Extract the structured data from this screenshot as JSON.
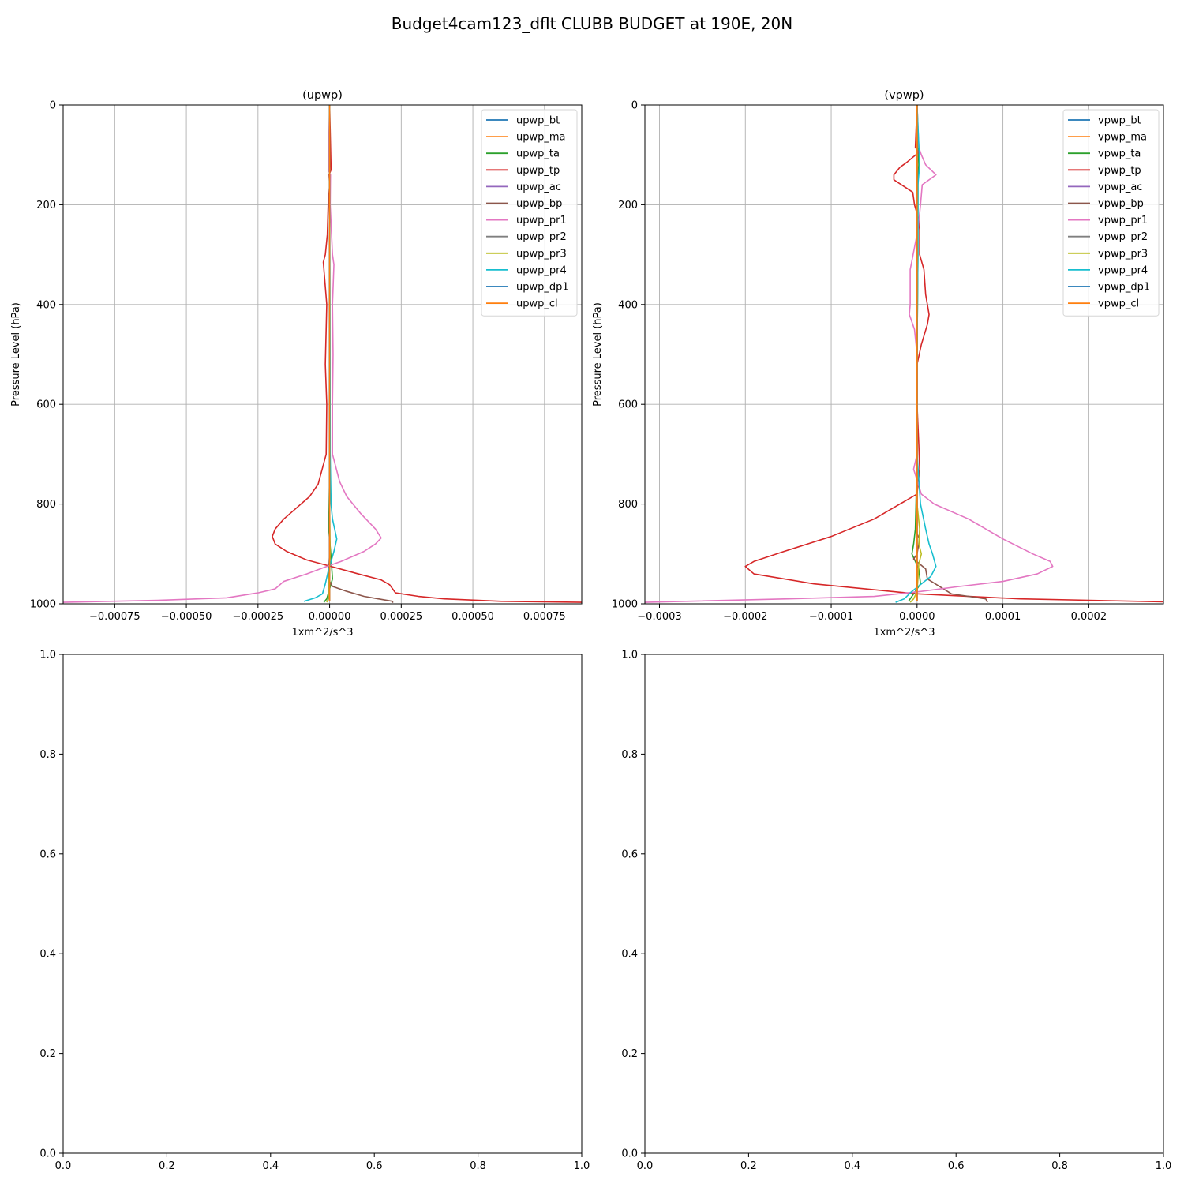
{
  "figure_title": "Budget4cam123_dflt CLUBB BUDGET at 190E, 20N",
  "colors": [
    "#1f77b4",
    "#ff7f0e",
    "#2ca02c",
    "#d62728",
    "#9467bd",
    "#8c564b",
    "#e377c2",
    "#7f7f7f",
    "#bcbd22",
    "#17becf",
    "#1f77b4",
    "#ff7f0e"
  ],
  "chart_data": [
    {
      "type": "line",
      "title": "(upwp)",
      "xlabel": "1xm^2/s^3",
      "ylabel": "Pressure Level (hPa)",
      "xlim": [
        -0.00093,
        0.00088
      ],
      "ylim": [
        1000,
        0
      ],
      "x_ticks": [
        -0.00075,
        -0.0005,
        -0.00025,
        0.0,
        0.00025,
        0.0005,
        0.00075
      ],
      "x_tick_labels": [
        "−0.00075",
        "−0.00050",
        "−0.00025",
        "0.00000",
        "0.00025",
        "0.00050",
        "0.00075"
      ],
      "y_ticks": [
        0,
        200,
        400,
        600,
        800,
        1000
      ],
      "y_tick_labels": [
        "0",
        "200",
        "400",
        "600",
        "800",
        "1000"
      ],
      "grid": true,
      "legend_position": "top-right",
      "series": [
        {
          "name": "upwp_bt",
          "y": [
            0,
            500,
            900,
            995
          ],
          "x": [
            0,
            0,
            0,
            0
          ]
        },
        {
          "name": "upwp_ma",
          "y": [
            0,
            500,
            900,
            995
          ],
          "x": [
            0,
            0,
            0,
            0
          ]
        },
        {
          "name": "upwp_ta",
          "y": [
            0,
            700,
            850,
            900,
            950,
            990,
            997
          ],
          "x": [
            0,
            1e-06,
            -3e-06,
            4e-06,
            1e-05,
            -1e-05,
            -2e-05
          ]
        },
        {
          "name": "upwp_tp",
          "y": [
            0,
            130,
            140,
            160,
            200,
            260,
            300,
            315,
            400,
            520,
            600,
            700,
            760,
            785,
            810,
            830,
            850,
            865,
            880,
            895,
            912,
            925,
            940,
            952,
            962,
            978,
            985,
            990,
            995,
            997
          ],
          "x": [
            0,
            5e-06,
            -2e-06,
            0,
            -5e-06,
            -8e-06,
            -1.5e-05,
            -2.2e-05,
            -1e-05,
            -1.5e-05,
            -1e-05,
            -1.2e-05,
            -4e-05,
            -7e-05,
            -0.00012,
            -0.00016,
            -0.00019,
            -0.0002,
            -0.00019,
            -0.00015,
            -8e-05,
            5e-06,
            0.0001,
            0.00018,
            0.00021,
            0.00023,
            0.00031,
            0.0004,
            0.0006,
            0.00088
          ]
        },
        {
          "name": "upwp_ac",
          "y": [
            0,
            500,
            900,
            995
          ],
          "x": [
            0,
            0,
            0,
            0
          ]
        },
        {
          "name": "upwp_bp",
          "y": [
            0,
            900,
            950,
            965,
            975,
            985,
            990,
            995,
            998
          ],
          "x": [
            0,
            0,
            -5e-06,
            1e-05,
            6e-05,
            0.00012,
            0.00017,
            0.00022,
            0.00022
          ]
        },
        {
          "name": "upwp_pr1",
          "y": [
            0,
            130,
            140,
            200,
            300,
            320,
            400,
            500,
            600,
            700,
            755,
            785,
            820,
            850,
            868,
            880,
            895,
            915,
            925,
            940,
            955,
            970,
            978,
            988,
            993,
            997
          ],
          "x": [
            0,
            -5e-06,
            3e-06,
            2e-06,
            1e-05,
            1.5e-05,
            1e-05,
            1.2e-05,
            1e-05,
            1e-05,
            3.5e-05,
            6e-05,
            0.00011,
            0.00016,
            0.00018,
            0.00016,
            0.00012,
            4e-05,
            -1e-05,
            -8e-05,
            -0.00016,
            -0.00019,
            -0.00025,
            -0.00036,
            -0.0006,
            -0.00093
          ]
        },
        {
          "name": "upwp_pr2",
          "y": [
            0,
            500,
            900,
            995
          ],
          "x": [
            0,
            0,
            0,
            0
          ]
        },
        {
          "name": "upwp_pr3",
          "y": [
            0,
            800,
            900,
            960,
            990,
            997
          ],
          "x": [
            0,
            0,
            2e-06,
            -3e-06,
            -5e-06,
            -1e-05
          ]
        },
        {
          "name": "upwp_pr4",
          "y": [
            0,
            700,
            800,
            830,
            870,
            895,
            915,
            935,
            960,
            980,
            988,
            995
          ],
          "x": [
            0,
            2e-06,
            5e-06,
            1e-05,
            2.5e-05,
            1.5e-05,
            5e-06,
            -5e-06,
            -1.5e-05,
            -2.5e-05,
            -5e-05,
            -9e-05
          ]
        },
        {
          "name": "upwp_dp1",
          "y": [
            0,
            500,
            900,
            995
          ],
          "x": [
            0,
            0,
            0,
            0
          ]
        },
        {
          "name": "upwp_cl",
          "y": [
            0,
            500,
            900,
            995
          ],
          "x": [
            0,
            0,
            0,
            0
          ]
        }
      ]
    },
    {
      "type": "line",
      "title": "(vpwp)",
      "xlabel": "1xm^2/s^3",
      "ylabel": "Pressure Level (hPa)",
      "xlim": [
        -0.000317,
        0.000287
      ],
      "ylim": [
        1000,
        0
      ],
      "x_ticks": [
        -0.0003,
        -0.0002,
        -0.0001,
        0.0,
        0.0001,
        0.0002
      ],
      "x_tick_labels": [
        "−0.0003",
        "−0.0002",
        "−0.0001",
        "0.0000",
        "0.0001",
        "0.0002"
      ],
      "y_ticks": [
        0,
        200,
        400,
        600,
        800,
        1000
      ],
      "y_tick_labels": [
        "0",
        "200",
        "400",
        "600",
        "800",
        "1000"
      ],
      "grid": true,
      "legend_position": "top-right",
      "series": [
        {
          "name": "vpwp_bt",
          "y": [
            0,
            500,
            900,
            995
          ],
          "x": [
            0,
            0,
            0,
            0
          ]
        },
        {
          "name": "vpwp_ma",
          "y": [
            0,
            500,
            900,
            995
          ],
          "x": [
            0,
            0,
            0,
            0
          ]
        },
        {
          "name": "vpwp_ta",
          "y": [
            0,
            120,
            150,
            300,
            500,
            780,
            850,
            880,
            900,
            930,
            960,
            985,
            995
          ],
          "x": [
            0,
            2e-06,
            1e-06,
            1e-06,
            0,
            -1e-06,
            -2e-06,
            -4e-06,
            -6e-06,
            2e-06,
            4e-06,
            -6e-06,
            -1e-05
          ]
        },
        {
          "name": "vpwp_tp",
          "y": [
            0,
            85,
            95,
            115,
            125,
            140,
            150,
            175,
            200,
            230,
            250,
            300,
            330,
            380,
            420,
            440,
            480,
            520,
            600,
            640,
            680,
            730,
            780,
            800,
            830,
            865,
            895,
            915,
            925,
            940,
            960,
            980,
            990,
            996
          ],
          "x": [
            0,
            -2e-06,
            2e-06,
            -1.2e-05,
            -2e-05,
            -2.7e-05,
            -2.7e-05,
            -5e-06,
            -3e-06,
            2e-06,
            3e-06,
            3e-06,
            8e-06,
            1e-05,
            1.4e-05,
            1.2e-05,
            5e-06,
            0,
            0,
            1e-06,
            2e-06,
            3e-06,
            0,
            -2e-05,
            -5e-05,
            -0.0001,
            -0.000155,
            -0.00019,
            -0.0002,
            -0.00019,
            -0.00012,
            0,
            0.00012,
            0.000287
          ]
        },
        {
          "name": "vpwp_ac",
          "y": [
            0,
            500,
            900,
            995
          ],
          "x": [
            0,
            0,
            0,
            0
          ]
        },
        {
          "name": "vpwp_bp",
          "y": [
            0,
            860,
            870,
            900,
            910,
            930,
            950,
            980,
            990,
            997
          ],
          "x": [
            0,
            0,
            3e-06,
            0,
            -4e-06,
            1e-05,
            1.2e-05,
            4e-05,
            8e-05,
            8.2e-05
          ]
        },
        {
          "name": "vpwp_pr1",
          "y": [
            0,
            85,
            100,
            120,
            140,
            160,
            200,
            250,
            330,
            400,
            420,
            450,
            500,
            600,
            700,
            730,
            780,
            800,
            830,
            870,
            900,
            915,
            925,
            940,
            955,
            965,
            975,
            985,
            990,
            997
          ],
          "x": [
            0,
            2e-06,
            5e-06,
            1e-05,
            2.2e-05,
            6e-06,
            4e-06,
            1e-06,
            -8e-06,
            -8e-06,
            -9e-06,
            -3e-06,
            0,
            0,
            0,
            -4e-06,
            5e-06,
            2e-05,
            6e-05,
            0.0001,
            0.000135,
            0.000155,
            0.000158,
            0.00014,
            0.0001,
            5e-05,
            5e-06,
            -5e-05,
            -0.00015,
            -0.000317
          ]
        },
        {
          "name": "vpwp_pr2",
          "y": [
            0,
            500,
            900,
            995
          ],
          "x": [
            0,
            0,
            0,
            0
          ]
        },
        {
          "name": "vpwp_pr3",
          "y": [
            0,
            800,
            850,
            880,
            900,
            920,
            950,
            975,
            990,
            997
          ],
          "x": [
            0,
            0,
            3e-06,
            2e-06,
            5e-06,
            2e-06,
            1e-06,
            0,
            -4e-06,
            -8e-06
          ]
        },
        {
          "name": "vpwp_pr4",
          "y": [
            0,
            120,
            160,
            300,
            500,
            700,
            800,
            850,
            880,
            900,
            925,
            945,
            960,
            975,
            990,
            997
          ],
          "x": [
            0,
            3e-06,
            1e-06,
            1e-06,
            0,
            0,
            4e-06,
            1e-05,
            1.4e-05,
            1.8e-05,
            2.2e-05,
            1.6e-05,
            5e-06,
            -6e-06,
            -1.5e-05,
            -2.5e-05
          ]
        },
        {
          "name": "vpwp_dp1",
          "y": [
            0,
            500,
            900,
            995
          ],
          "x": [
            0,
            0,
            0,
            0
          ]
        },
        {
          "name": "vpwp_cl",
          "y": [
            0,
            500,
            900,
            995
          ],
          "x": [
            0,
            0,
            0,
            0
          ]
        }
      ]
    },
    {
      "type": "line",
      "title": "",
      "xlim": [
        0,
        1
      ],
      "ylim": [
        0,
        1
      ],
      "x_tick_labels": [
        "0.0",
        "0.2",
        "0.4",
        "0.6",
        "0.8",
        "1.0"
      ],
      "y_tick_labels": [
        "0.0",
        "0.2",
        "0.4",
        "0.6",
        "0.8",
        "1.0"
      ],
      "grid": false,
      "series": []
    },
    {
      "type": "line",
      "title": "",
      "xlim": [
        0,
        1
      ],
      "ylim": [
        0,
        1
      ],
      "x_tick_labels": [
        "0.0",
        "0.2",
        "0.4",
        "0.6",
        "0.8",
        "1.0"
      ],
      "y_tick_labels": [
        "0.0",
        "0.2",
        "0.4",
        "0.6",
        "0.8",
        "1.0"
      ],
      "grid": false,
      "series": []
    }
  ]
}
